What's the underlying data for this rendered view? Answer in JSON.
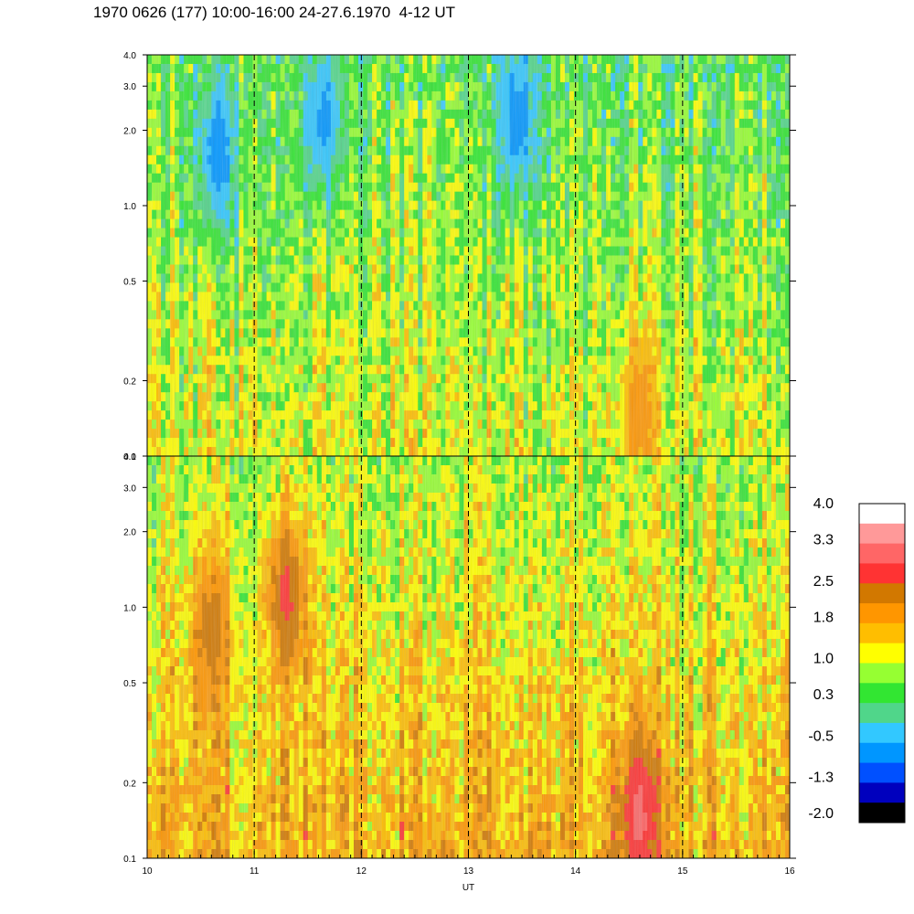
{
  "title": "1970 0626 (177) 10:00-16:00 24-27.6.1970  4-12 UT",
  "chart_data": [
    {
      "type": "heatmap",
      "panel": "upper",
      "x_range": [
        10,
        16
      ],
      "y_range": [
        0.1,
        4.0
      ],
      "y_scale": "log",
      "y_ticks": [
        "0.1",
        "0.2",
        "0.5",
        "1.0",
        "2.0",
        "3.0",
        "4.0"
      ],
      "y_tick_values": [
        0.1,
        0.2,
        0.5,
        1.0,
        2.0,
        3.0,
        4.0
      ],
      "dashed_gridlines_x": [
        11,
        12,
        13,
        14,
        15
      ],
      "dominant_level": 0.6,
      "features": [
        {
          "kind": "low",
          "x": 10.65,
          "y": 1.6,
          "level": -0.8
        },
        {
          "kind": "low",
          "x": 11.65,
          "y": 2.2,
          "level": -0.6
        },
        {
          "kind": "low",
          "x": 13.45,
          "y": 2.2,
          "level": -0.8
        },
        {
          "kind": "high",
          "x": 14.6,
          "y": 0.15,
          "level": 2.0
        }
      ]
    },
    {
      "type": "heatmap",
      "panel": "lower",
      "x_range": [
        10,
        16
      ],
      "y_range": [
        0.1,
        4.0
      ],
      "y_scale": "log",
      "y_ticks": [
        "0.1",
        "0.2",
        "0.5",
        "1.0",
        "2.0",
        "3.0",
        "4.0"
      ],
      "y_tick_values": [
        0.1,
        0.2,
        0.5,
        1.0,
        2.0,
        3.0,
        4.0
      ],
      "x_ticks": [
        "10",
        "11",
        "12",
        "13",
        "14",
        "15",
        "16"
      ],
      "x_tick_values": [
        10,
        11,
        12,
        13,
        14,
        15,
        16
      ],
      "xlabel": "UT",
      "dashed_gridlines_x": [
        11,
        12,
        13,
        14,
        15
      ],
      "dominant_level": 1.8,
      "features": [
        {
          "kind": "high",
          "x": 10.6,
          "y": 0.8,
          "level": 2.3
        },
        {
          "kind": "high",
          "x": 11.3,
          "y": 1.1,
          "level": 2.6
        },
        {
          "kind": "high",
          "x": 14.6,
          "y": 0.15,
          "level": 3.0
        }
      ]
    }
  ],
  "colorbar": {
    "labels": [
      "4.0",
      "3.3",
      "2.5",
      "1.8",
      "1.0",
      "0.3",
      "-0.5",
      "-1.3",
      "-2.0"
    ],
    "label_values": [
      4.0,
      3.3,
      2.5,
      1.8,
      1.0,
      0.3,
      -0.5,
      -1.3,
      -2.0
    ],
    "colors": [
      "#ffffff",
      "#ff9999",
      "#ff6666",
      "#ff3333",
      "#d27800",
      "#ff9600",
      "#ffbe00",
      "#ffff00",
      "#96ff32",
      "#32e632",
      "#50d68a",
      "#32c8ff",
      "#0096ff",
      "#0050ff",
      "#0000be",
      "#000000"
    ]
  }
}
